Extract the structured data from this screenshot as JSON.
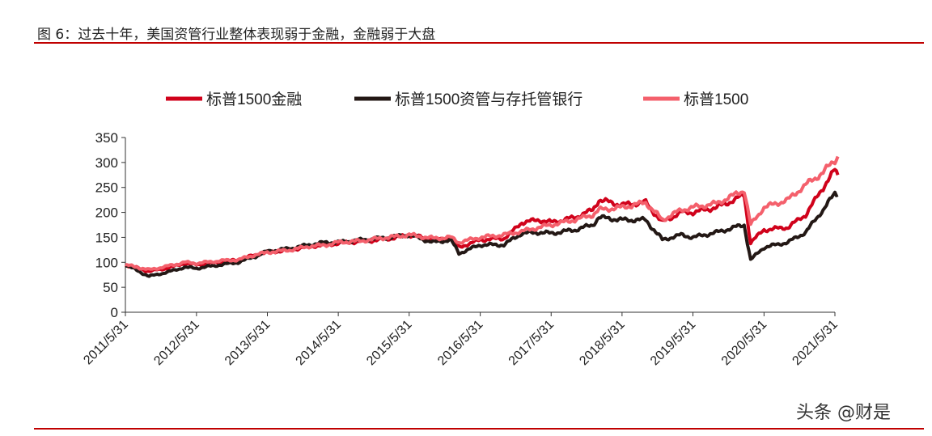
{
  "title": "图 6：过去十年，美国资管行业整体表现弱于金融，金融弱于大盘",
  "watermark": "头条 @财是",
  "chart_data": {
    "type": "line",
    "title": "",
    "xlabel": "",
    "ylabel": "",
    "ylim": [
      0,
      350
    ],
    "yticks": [
      "0",
      "50",
      "100",
      "150",
      "200",
      "250",
      "300",
      "350"
    ],
    "xticks": [
      "2011/5/31",
      "2012/5/31",
      "2013/5/31",
      "2014/5/31",
      "2015/5/31",
      "2016/5/31",
      "2017/5/31",
      "2018/5/31",
      "2019/5/31",
      "2020/5/31",
      "2021/5/31"
    ],
    "xlim": [
      "2011/5/31",
      "2021/6/15"
    ],
    "grid": false,
    "legend": "top",
    "x": [
      "2011/5/31",
      "2011/9/30",
      "2011/12/31",
      "2012/3/31",
      "2012/5/31",
      "2012/9/30",
      "2012/12/31",
      "2013/3/31",
      "2013/5/31",
      "2013/9/30",
      "2013/12/31",
      "2014/3/31",
      "2014/5/31",
      "2014/9/30",
      "2014/12/31",
      "2015/3/31",
      "2015/5/31",
      "2015/9/30",
      "2015/12/31",
      "2016/2/11",
      "2016/5/31",
      "2016/9/30",
      "2016/11/8",
      "2016/12/31",
      "2017/3/31",
      "2017/5/31",
      "2017/9/30",
      "2017/12/31",
      "2018/2/1",
      "2018/5/31",
      "2018/9/30",
      "2018/12/24",
      "2019/3/31",
      "2019/5/31",
      "2019/9/30",
      "2019/12/31",
      "2020/2/19",
      "2020/3/23",
      "2020/5/31",
      "2020/9/30",
      "2020/12/31",
      "2021/3/31",
      "2021/5/31",
      "2021/6/15"
    ],
    "series": [
      {
        "name": "标普1500金融",
        "color": "#d0021b",
        "values": [
          95,
          82,
          88,
          98,
          95,
          100,
          105,
          115,
          120,
          125,
          132,
          135,
          138,
          142,
          145,
          150,
          155,
          145,
          148,
          130,
          145,
          148,
          160,
          180,
          185,
          180,
          190,
          205,
          225,
          215,
          220,
          180,
          200,
          200,
          210,
          225,
          235,
          140,
          165,
          170,
          195,
          250,
          285,
          275
        ]
      },
      {
        "name": "标普1500资管与存托管银行",
        "color": "#231815",
        "values": [
          95,
          72,
          80,
          90,
          88,
          95,
          100,
          112,
          122,
          128,
          135,
          140,
          140,
          145,
          148,
          152,
          155,
          140,
          145,
          118,
          135,
          135,
          145,
          158,
          160,
          158,
          165,
          175,
          190,
          185,
          185,
          145,
          155,
          150,
          160,
          170,
          175,
          105,
          130,
          140,
          160,
          205,
          238,
          235
        ]
      },
      {
        "name": "标普1500",
        "color": "#f4606c",
        "values": [
          95,
          85,
          92,
          100,
          98,
          103,
          105,
          115,
          120,
          125,
          132,
          135,
          140,
          143,
          148,
          152,
          155,
          148,
          150,
          140,
          150,
          155,
          158,
          162,
          170,
          175,
          185,
          195,
          205,
          210,
          220,
          185,
          205,
          210,
          218,
          235,
          245,
          175,
          210,
          225,
          255,
          280,
          305,
          312
        ]
      }
    ]
  }
}
